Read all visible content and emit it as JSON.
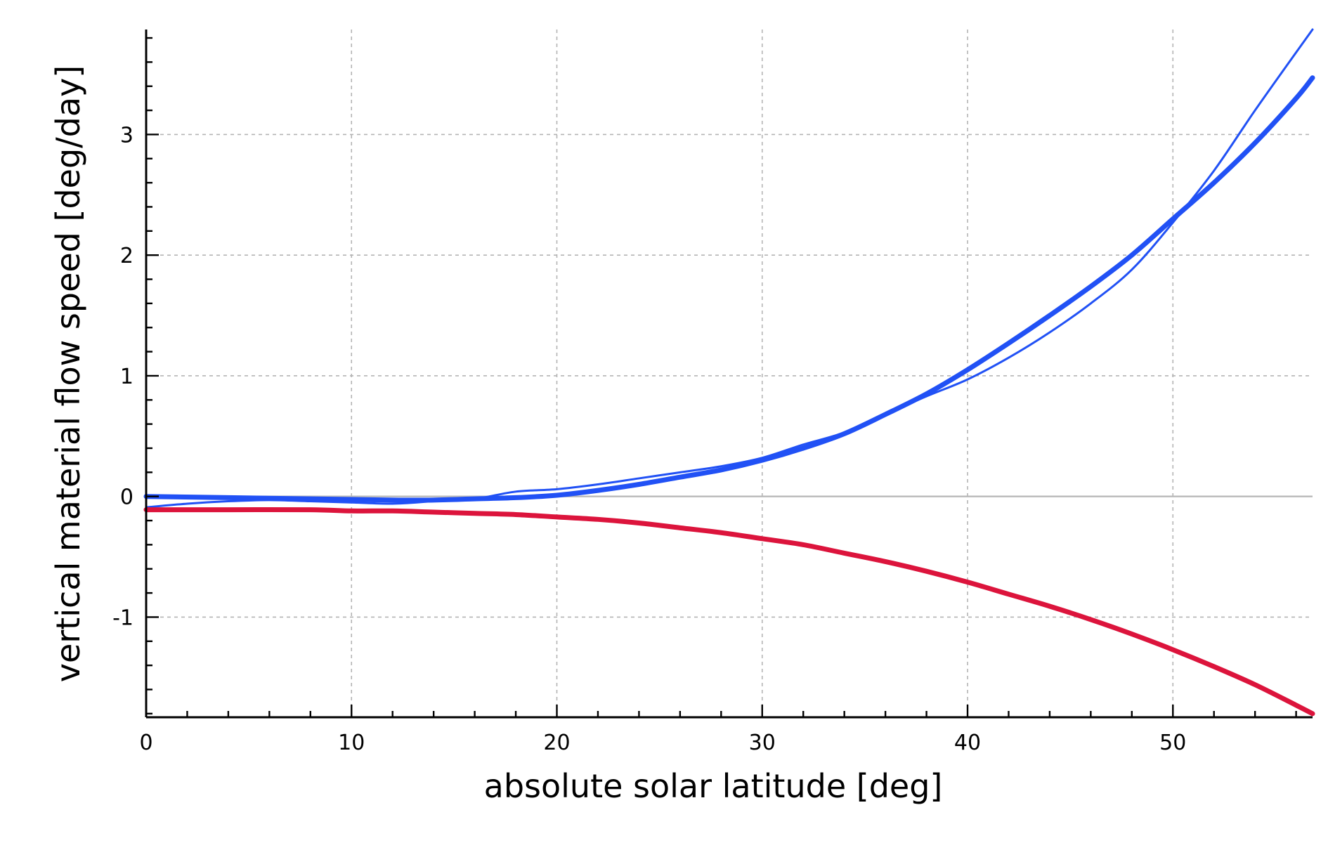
{
  "chart_data": {
    "type": "line",
    "title": "",
    "xlabel": "absolute solar latitude [deg]",
    "ylabel": "vertical material flow speed [deg/day]",
    "xlim": [
      0,
      56.8
    ],
    "ylim": [
      -1.83,
      3.87
    ],
    "x_ticks": [
      0,
      10,
      20,
      30,
      40,
      50
    ],
    "x_tick_labels": [
      "0",
      "10",
      "20",
      "30",
      "40",
      "50"
    ],
    "y_ticks": [
      -1,
      0,
      1,
      2,
      3
    ],
    "y_tick_labels": [
      "-1",
      "0",
      "1",
      "2",
      "3"
    ],
    "grid": true,
    "legend": "none",
    "series": [
      {
        "color": "#2151f5",
        "style": "thin",
        "x": [
          0,
          2,
          4,
          6,
          8,
          10,
          12,
          14,
          16,
          18,
          20,
          22,
          24,
          26,
          28,
          30,
          32,
          34,
          36,
          38,
          40,
          42,
          44,
          46,
          48,
          50,
          52,
          54,
          56,
          56.8
        ],
        "y": [
          -0.09,
          -0.06,
          -0.04,
          -0.03,
          -0.04,
          -0.05,
          -0.06,
          -0.04,
          -0.02,
          0.04,
          0.06,
          0.1,
          0.15,
          0.2,
          0.25,
          0.32,
          0.43,
          0.53,
          0.68,
          0.83,
          0.97,
          1.15,
          1.36,
          1.6,
          1.88,
          2.27,
          2.7,
          3.2,
          3.68,
          3.87
        ]
      },
      {
        "color": "#2151f5",
        "style": "thick",
        "x": [
          0,
          4,
          8,
          12,
          14,
          16,
          18,
          20,
          22,
          24,
          26,
          28,
          30,
          32,
          34,
          36,
          38,
          40,
          42,
          44,
          46,
          48,
          50,
          52,
          54,
          56,
          56.8
        ],
        "y": [
          0.0,
          -0.01,
          -0.02,
          -0.03,
          -0.03,
          -0.02,
          -0.01,
          0.01,
          0.05,
          0.1,
          0.16,
          0.22,
          0.3,
          0.4,
          0.52,
          0.68,
          0.85,
          1.05,
          1.27,
          1.5,
          1.74,
          2.0,
          2.3,
          2.6,
          2.93,
          3.3,
          3.47
        ]
      },
      {
        "color": "#dc143c",
        "style": "thick",
        "x": [
          0,
          4,
          8,
          10,
          12,
          14,
          16,
          18,
          20,
          22,
          24,
          26,
          28,
          30,
          32,
          34,
          36,
          38,
          40,
          42,
          44,
          46,
          48,
          50,
          52,
          54,
          56,
          56.8
        ],
        "y": [
          -0.11,
          -0.11,
          -0.11,
          -0.12,
          -0.12,
          -0.13,
          -0.14,
          -0.15,
          -0.17,
          -0.19,
          -0.22,
          -0.26,
          -0.3,
          -0.35,
          -0.4,
          -0.47,
          -0.54,
          -0.62,
          -0.71,
          -0.81,
          -0.91,
          -1.02,
          -1.14,
          -1.27,
          -1.41,
          -1.56,
          -1.73,
          -1.8
        ]
      }
    ]
  }
}
